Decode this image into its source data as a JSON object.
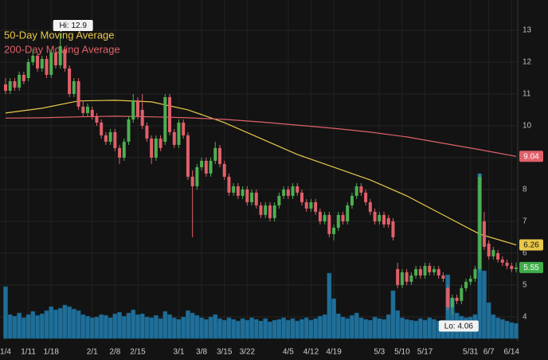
{
  "chart_data": {
    "type": "candlestick",
    "categories": [
      "1/4",
      null,
      null,
      null,
      null,
      "1/11",
      null,
      null,
      null,
      null,
      "1/18",
      null,
      null,
      null,
      null,
      null,
      null,
      null,
      null,
      "2/1",
      null,
      null,
      null,
      null,
      "2/8",
      null,
      null,
      null,
      null,
      "2/15",
      null,
      null,
      null,
      null,
      null,
      null,
      null,
      null,
      "3/1",
      null,
      null,
      null,
      null,
      "3/8",
      null,
      null,
      null,
      null,
      "3/15",
      null,
      null,
      null,
      null,
      "3/22",
      null,
      null,
      null,
      null,
      null,
      null,
      null,
      null,
      "4/5",
      null,
      null,
      null,
      null,
      "4/12",
      null,
      null,
      null,
      null,
      "4/19",
      null,
      null,
      null,
      null,
      null,
      null,
      null,
      null,
      null,
      "5/3",
      null,
      null,
      null,
      null,
      "5/10",
      null,
      null,
      null,
      null,
      "5/17",
      null,
      null,
      null,
      null,
      null,
      null,
      null,
      null,
      null,
      "5/31",
      null,
      null,
      null,
      "6/7",
      null,
      null,
      null,
      null,
      "6/14",
      null
    ],
    "ohlc": [
      [
        11.3,
        11.5,
        11.0,
        11.1
      ],
      [
        11.1,
        11.5,
        11.0,
        11.4
      ],
      [
        11.4,
        11.5,
        11.1,
        11.2
      ],
      [
        11.2,
        11.7,
        11.1,
        11.6
      ],
      [
        11.6,
        11.7,
        11.3,
        11.4
      ],
      [
        11.5,
        12.1,
        11.4,
        12.0
      ],
      [
        12.0,
        12.4,
        11.9,
        12.2
      ],
      [
        12.2,
        12.3,
        11.7,
        11.8
      ],
      [
        11.8,
        12.2,
        11.7,
        12.1
      ],
      [
        12.1,
        12.2,
        11.5,
        11.6
      ],
      [
        11.6,
        12.4,
        11.5,
        12.3
      ],
      [
        12.3,
        12.4,
        11.8,
        11.9
      ],
      [
        11.9,
        12.9,
        11.8,
        12.5
      ],
      [
        12.4,
        12.5,
        11.7,
        11.8
      ],
      [
        11.8,
        11.9,
        10.9,
        11.0
      ],
      [
        11.0,
        11.5,
        10.9,
        11.4
      ],
      [
        11.4,
        11.5,
        10.5,
        10.6
      ],
      [
        10.6,
        10.8,
        10.3,
        10.4
      ],
      [
        10.4,
        10.7,
        10.3,
        10.6
      ],
      [
        10.5,
        10.6,
        10.2,
        10.3
      ],
      [
        10.3,
        10.4,
        10.0,
        10.1
      ],
      [
        10.1,
        10.2,
        9.6,
        9.7
      ],
      [
        9.7,
        9.8,
        9.4,
        9.5
      ],
      [
        9.5,
        9.9,
        9.4,
        9.8
      ],
      [
        9.8,
        9.9,
        9.2,
        9.3
      ],
      [
        9.3,
        9.4,
        8.8,
        9.0
      ],
      [
        9.0,
        9.6,
        8.9,
        9.5
      ],
      [
        9.5,
        10.3,
        9.4,
        10.2
      ],
      [
        10.2,
        11.0,
        10.1,
        10.8
      ],
      [
        10.8,
        10.9,
        10.2,
        10.3
      ],
      [
        10.5,
        11.0,
        9.9,
        10.0
      ],
      [
        10.0,
        10.1,
        9.5,
        9.6
      ],
      [
        9.6,
        9.7,
        8.8,
        9.0
      ],
      [
        9.0,
        9.7,
        8.9,
        9.6
      ],
      [
        9.6,
        9.7,
        9.2,
        9.3
      ],
      [
        9.5,
        11.0,
        9.4,
        10.9
      ],
      [
        10.9,
        11.0,
        9.7,
        9.8
      ],
      [
        9.8,
        9.9,
        9.3,
        9.4
      ],
      [
        9.4,
        10.2,
        9.3,
        10.1
      ],
      [
        10.1,
        10.2,
        9.6,
        9.7
      ],
      [
        9.7,
        9.8,
        8.3,
        8.4
      ],
      [
        8.4,
        8.6,
        6.5,
        8.1
      ],
      [
        8.1,
        8.8,
        8.0,
        8.7
      ],
      [
        8.7,
        9.0,
        8.6,
        8.9
      ],
      [
        8.9,
        9.0,
        8.4,
        8.5
      ],
      [
        8.5,
        9.0,
        8.4,
        8.9
      ],
      [
        8.9,
        9.5,
        8.8,
        9.3
      ],
      [
        9.3,
        9.4,
        8.7,
        8.8
      ],
      [
        8.8,
        8.9,
        8.3,
        8.4
      ],
      [
        8.4,
        8.5,
        7.8,
        7.9
      ],
      [
        7.9,
        8.2,
        7.8,
        8.1
      ],
      [
        8.1,
        8.2,
        7.7,
        7.8
      ],
      [
        7.8,
        8.1,
        7.7,
        8.0
      ],
      [
        8.0,
        8.1,
        7.5,
        7.6
      ],
      [
        7.6,
        8.0,
        7.5,
        7.9
      ],
      [
        7.9,
        8.0,
        7.4,
        7.5
      ],
      [
        7.5,
        7.6,
        7.1,
        7.2
      ],
      [
        7.2,
        7.6,
        7.1,
        7.5
      ],
      [
        7.5,
        7.6,
        7.0,
        7.1
      ],
      [
        7.1,
        7.6,
        7.0,
        7.5
      ],
      [
        7.5,
        7.9,
        7.4,
        7.8
      ],
      [
        7.8,
        8.1,
        7.7,
        8.0
      ],
      [
        8.0,
        8.1,
        7.7,
        7.8
      ],
      [
        7.8,
        8.2,
        7.7,
        8.1
      ],
      [
        8.1,
        8.2,
        7.8,
        7.9
      ],
      [
        7.9,
        8.0,
        7.5,
        7.6
      ],
      [
        7.6,
        7.7,
        7.3,
        7.4
      ],
      [
        7.4,
        7.7,
        7.3,
        7.6
      ],
      [
        7.6,
        7.7,
        7.2,
        7.3
      ],
      [
        7.3,
        7.4,
        6.9,
        7.0
      ],
      [
        7.0,
        7.3,
        6.9,
        7.2
      ],
      [
        7.2,
        7.3,
        6.5,
        6.6
      ],
      [
        6.6,
        6.9,
        6.4,
        6.8
      ],
      [
        6.8,
        7.3,
        6.7,
        7.2
      ],
      [
        7.2,
        7.3,
        6.9,
        7.0
      ],
      [
        7.0,
        7.6,
        6.9,
        7.5
      ],
      [
        7.5,
        7.9,
        7.4,
        7.8
      ],
      [
        7.8,
        8.2,
        7.7,
        8.1
      ],
      [
        8.1,
        8.2,
        7.8,
        7.9
      ],
      [
        7.9,
        8.0,
        7.5,
        7.6
      ],
      [
        7.6,
        7.7,
        7.2,
        7.3
      ],
      [
        7.3,
        7.4,
        6.9,
        7.0
      ],
      [
        7.0,
        7.3,
        6.9,
        7.2
      ],
      [
        7.2,
        7.3,
        6.8,
        6.9
      ],
      [
        7.1,
        7.2,
        6.8,
        6.9
      ],
      [
        7.0,
        7.1,
        6.4,
        6.5
      ],
      [
        5.5,
        5.7,
        4.9,
        5.0
      ],
      [
        5.0,
        5.5,
        4.9,
        5.4
      ],
      [
        5.4,
        5.5,
        5.0,
        5.1
      ],
      [
        5.1,
        5.4,
        5.0,
        5.3
      ],
      [
        5.3,
        5.6,
        5.2,
        5.5
      ],
      [
        5.5,
        5.6,
        5.2,
        5.3
      ],
      [
        5.3,
        5.7,
        5.2,
        5.6
      ],
      [
        5.6,
        5.7,
        5.3,
        5.4
      ],
      [
        5.4,
        5.6,
        5.3,
        5.5
      ],
      [
        5.5,
        5.6,
        5.2,
        5.3
      ],
      [
        5.3,
        5.4,
        5.1,
        5.2
      ],
      [
        4.9,
        5.0,
        4.2,
        4.3
      ],
      [
        4.3,
        4.7,
        4.06,
        4.6
      ],
      [
        4.6,
        4.7,
        4.4,
        4.5
      ],
      [
        4.5,
        5.0,
        4.4,
        4.9
      ],
      [
        4.9,
        5.2,
        4.8,
        5.1
      ],
      [
        5.1,
        5.3,
        5.0,
        5.2
      ],
      [
        5.2,
        5.6,
        5.1,
        5.5
      ],
      [
        5.5,
        8.5,
        5.4,
        8.4
      ],
      [
        7.0,
        7.3,
        6.1,
        6.2
      ],
      [
        6.3,
        6.4,
        5.8,
        5.9
      ],
      [
        5.9,
        6.2,
        5.8,
        6.1
      ],
      [
        6.0,
        6.1,
        5.7,
        5.8
      ],
      [
        5.8,
        5.9,
        5.6,
        5.7
      ],
      [
        5.7,
        5.8,
        5.5,
        5.6
      ],
      [
        5.6,
        5.7,
        5.4,
        5.5
      ],
      [
        5.5,
        5.7,
        5.4,
        5.55
      ]
    ],
    "volume": [
      6.5,
      3.0,
      2.8,
      3.2,
      2.6,
      3.0,
      3.4,
      2.9,
      3.1,
      3.5,
      4.0,
      3.6,
      3.8,
      4.2,
      4.0,
      3.7,
      3.5,
      3.0,
      2.8,
      2.6,
      2.7,
      3.0,
      2.9,
      2.6,
      3.1,
      3.3,
      2.8,
      3.2,
      3.6,
      3.0,
      3.1,
      2.7,
      2.6,
      2.9,
      2.5,
      3.4,
      3.0,
      2.6,
      2.4,
      2.7,
      3.5,
      3.2,
      2.9,
      2.6,
      2.4,
      2.7,
      3.0,
      2.5,
      2.3,
      2.6,
      2.4,
      2.2,
      2.5,
      2.3,
      2.6,
      2.4,
      2.2,
      2.5,
      2.1,
      2.3,
      2.4,
      2.6,
      2.3,
      2.5,
      2.2,
      2.4,
      2.6,
      2.3,
      2.5,
      2.8,
      3.0,
      8.2,
      5.0,
      3.1,
      2.7,
      2.5,
      2.9,
      3.2,
      2.6,
      2.4,
      2.3,
      2.7,
      2.5,
      2.4,
      3.0,
      6.0,
      3.5,
      2.6,
      2.4,
      2.3,
      2.2,
      2.5,
      2.3,
      2.6,
      2.4,
      2.2,
      2.3,
      8.0,
      5.0,
      3.2,
      2.8,
      2.6,
      2.7,
      3.0,
      20.7,
      8.5,
      4.5,
      3.0,
      2.6,
      2.4,
      2.2,
      2.0,
      1.9
    ],
    "series": [
      {
        "name": "50-Day Moving Average",
        "color": "#e8c84a",
        "x": [
          0,
          8,
          16,
          24,
          32,
          40,
          48,
          56,
          64,
          72,
          80,
          88,
          96,
          104,
          112
        ],
        "values": [
          10.4,
          10.55,
          10.78,
          10.8,
          10.75,
          10.5,
          10.1,
          9.6,
          9.1,
          8.7,
          8.3,
          7.8,
          7.2,
          6.6,
          6.26
        ]
      },
      {
        "name": "200-Day Moving Average",
        "color": "#e0606a",
        "x": [
          0,
          8,
          16,
          24,
          32,
          40,
          48,
          56,
          64,
          72,
          80,
          88,
          96,
          104,
          112
        ],
        "values": [
          10.24,
          10.25,
          10.28,
          10.3,
          10.28,
          10.25,
          10.2,
          10.12,
          10.02,
          9.92,
          9.8,
          9.65,
          9.45,
          9.25,
          9.04
        ]
      }
    ],
    "up_color": "#4caf50",
    "down_color": "#e0606a",
    "volume_color": "#1f6f99",
    "last_color": "#3fae49",
    "annotations": {
      "high": "Hi: 12.9",
      "low": "Lo: 4.06"
    },
    "ylim": [
      3.32,
      13.95
    ],
    "yticks": [
      4,
      5,
      6,
      7,
      8,
      9,
      10,
      11,
      12,
      13
    ],
    "grid": true
  }
}
